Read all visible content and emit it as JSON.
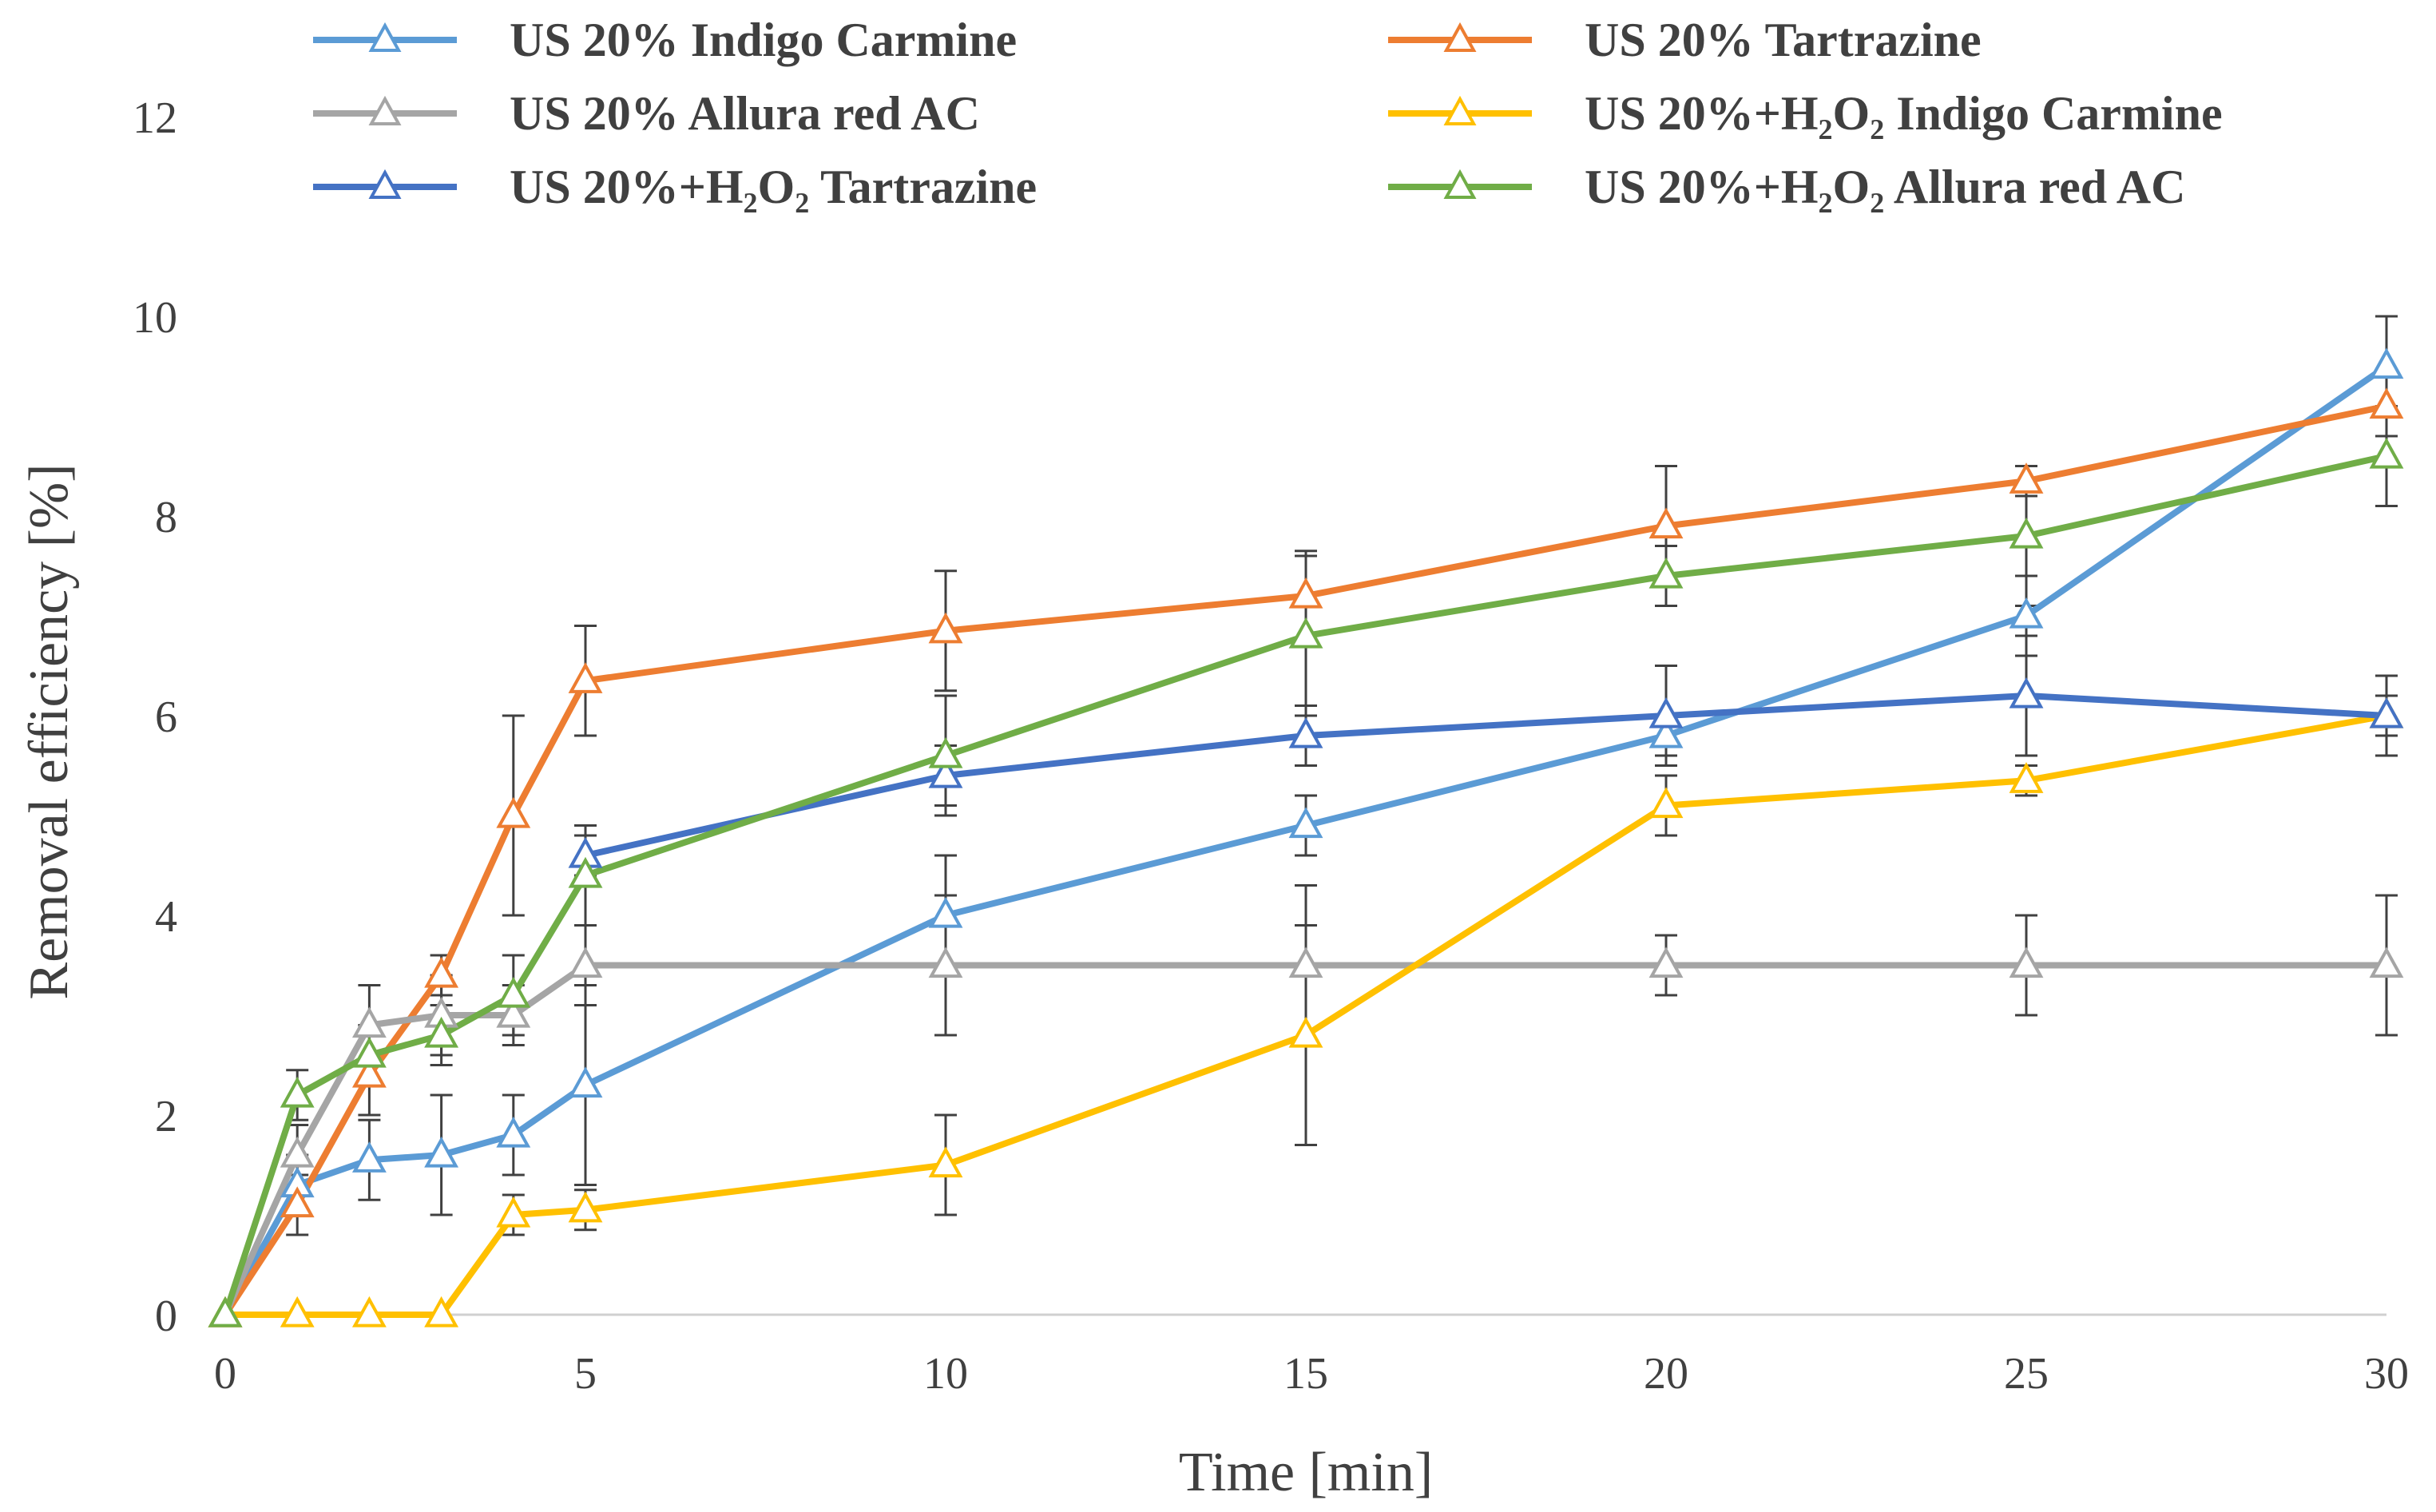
{
  "chart_data": {
    "type": "line",
    "xlabel": "Time [min]",
    "ylabel": "Removal efficiency [%]",
    "xlim": [
      0,
      30
    ],
    "ylim": [
      0,
      12
    ],
    "x_ticks": [
      "0",
      "5",
      "10",
      "15",
      "20",
      "25",
      "30"
    ],
    "y_ticks": [
      "0",
      "2",
      "4",
      "6",
      "8",
      "10",
      "12"
    ],
    "grid": false,
    "legend_position": "top",
    "marker": "open-triangle",
    "x": [
      0,
      1,
      2,
      3,
      4,
      5,
      10,
      15,
      20,
      25,
      30
    ],
    "series": [
      {
        "name": "US 20% Indigo Carmine",
        "color": "#5B9BD5",
        "values": [
          0,
          1.3,
          1.55,
          1.6,
          1.8,
          2.3,
          4.0,
          4.9,
          5.8,
          7.0,
          9.5
        ],
        "errors": [
          0,
          0.3,
          0.4,
          0.6,
          0.4,
          1.0,
          0.6,
          0.3,
          0.2,
          0.4,
          0.5
        ]
      },
      {
        "name": "US 20% Tartrazine",
        "color": "#ED7D31",
        "values": [
          0,
          1.1,
          2.4,
          3.4,
          5.0,
          6.35,
          6.85,
          7.2,
          7.9,
          8.35,
          9.1
        ],
        "errors": [
          0,
          0.3,
          0.4,
          0.2,
          1.0,
          0.55,
          0.6,
          0.45,
          0.6,
          0.15,
          0.3
        ]
      },
      {
        "name": "US 20% Allura red AC",
        "color": "#A5A5A5",
        "values": [
          0,
          1.6,
          2.9,
          3.0,
          3.0,
          3.5,
          3.5,
          3.5,
          3.5,
          3.5,
          3.5
        ],
        "errors": [
          0,
          0.3,
          0.4,
          0.4,
          0.3,
          0.4,
          0.7,
          0.8,
          0.3,
          0.5,
          0.7
        ]
      },
      {
        "name": "US 20%+H₂O₂ Indigo Carmine",
        "color": "#FFC000",
        "values": [
          0,
          0,
          0,
          0,
          1.0,
          1.05,
          1.5,
          2.8,
          5.1,
          5.35,
          6.0
        ],
        "errors": [
          0,
          0,
          0,
          0,
          0.2,
          0.2,
          0.5,
          1.1,
          0.3,
          0.15,
          0.2
        ]
      },
      {
        "name": "US 20%+H₂O₂ Tartrazine",
        "color": "#4472C4",
        "values": [
          null,
          null,
          null,
          null,
          null,
          4.6,
          5.4,
          5.8,
          6.0,
          6.2,
          6.0
        ],
        "errors": [
          0,
          0,
          0,
          0,
          0,
          0.2,
          0.3,
          0.3,
          0.5,
          0.6,
          0.4
        ]
      },
      {
        "name": "US 20%+H₂O₂ Allura red AC",
        "color": "#70AD47",
        "values": [
          0,
          2.2,
          2.6,
          2.8,
          3.2,
          4.4,
          5.6,
          6.8,
          7.4,
          7.8,
          8.6
        ],
        "errors": [
          0,
          0.25,
          0.3,
          0.3,
          0.4,
          0.5,
          0.6,
          0.8,
          0.3,
          0.7,
          0.5
        ]
      }
    ]
  }
}
